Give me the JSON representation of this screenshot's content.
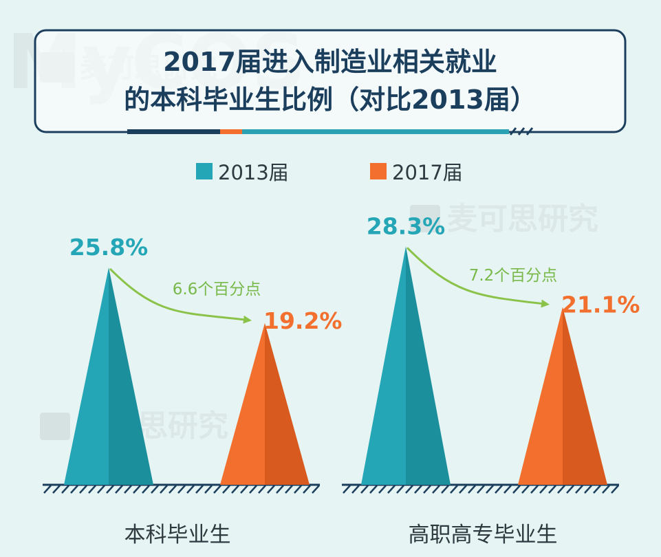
{
  "title_line1": "2017届进入制造业相关就业",
  "title_line2": "的本科毕业生比例（对比2013届）",
  "watermark": "麦可思研究",
  "colors": {
    "teal": "#24a6b6",
    "teal_dark": "#1c8f9c",
    "orange": "#f26f2d",
    "orange_dark": "#d95a1f",
    "arrow": "#8bc34a",
    "title": "#1b3e5d"
  },
  "chart_data": {
    "type": "bar",
    "title": "2017届进入制造业相关就业的本科毕业生比例（对比2013届）",
    "categories": [
      "本科毕业生",
      "高职高专毕业生"
    ],
    "series": [
      {
        "name": "2013届",
        "values": [
          25.8,
          28.3
        ],
        "labels": [
          "25.8%",
          "28.3%"
        ]
      },
      {
        "name": "2017届",
        "values": [
          19.2,
          21.1
        ],
        "labels": [
          "19.2%",
          "21.1%"
        ]
      }
    ],
    "differences": [
      "6.6个百分点",
      "7.2个百分点"
    ],
    "ylim": [
      0,
      30
    ],
    "legend_position": "top-center",
    "grid": false
  }
}
